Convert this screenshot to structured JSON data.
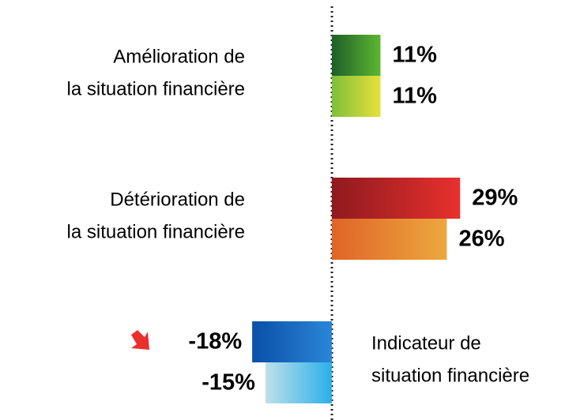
{
  "chart_data": {
    "type": "hbar",
    "categories": [
      [
        "Amélioration de",
        "la situation financière"
      ],
      [
        "Détérioration de",
        "la situation financière"
      ],
      [
        "Indicateur de",
        "situation financière"
      ]
    ],
    "xlim": [
      -75,
      57
    ],
    "series": [
      {
        "values": [
          11,
          29,
          -18
        ],
        "value_labels": [
          "11%",
          "29%",
          "-18%"
        ],
        "colors": [
          [
            "#1e5e2a",
            "#5cb82e"
          ],
          [
            "#8e1a1e",
            "#e8302e"
          ],
          [
            "#0a4fa8",
            "#2a86d8"
          ]
        ]
      },
      {
        "values": [
          11,
          26,
          -15
        ],
        "value_labels": [
          "11%",
          "26%",
          "-15%"
        ],
        "colors": [
          [
            "#7cc03a",
            "#e8e03a"
          ],
          [
            "#e06428",
            "#eca83e"
          ],
          [
            "#bfe0ea",
            "#2ab0e8"
          ]
        ]
      }
    ]
  }
}
